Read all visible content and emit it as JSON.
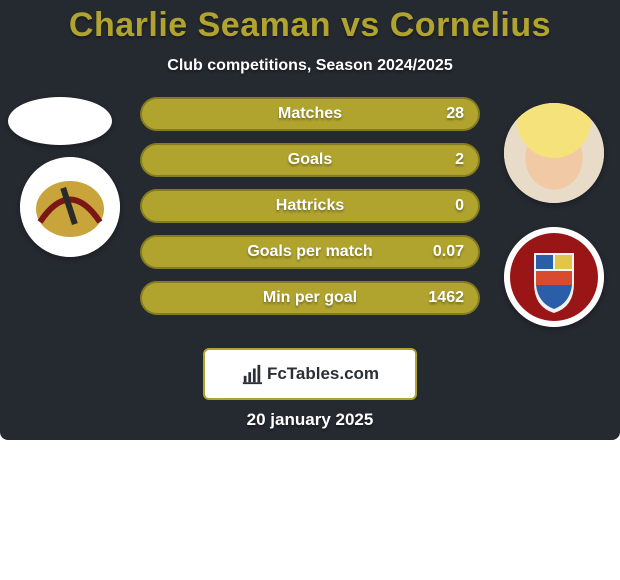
{
  "colors": {
    "card_bg": "#252930",
    "title_color": "#b0a42f",
    "subtitle_color": "#ffffff",
    "bar_bg": "#b0a42f",
    "bar_border": "#857c1f",
    "bar_text": "#ffffff",
    "footer_border": "#b0a42f",
    "footer_text": "#2b2f36",
    "footer_bg": "#ffffff",
    "date_color": "#ffffff"
  },
  "title": "Charlie Seaman vs Cornelius",
  "subtitle": "Club competitions, Season 2024/2025",
  "stats": [
    {
      "label": "Matches",
      "value": "28"
    },
    {
      "label": "Goals",
      "value": "2"
    },
    {
      "label": "Hattricks",
      "value": "0"
    },
    {
      "label": "Goals per match",
      "value": "0.07"
    },
    {
      "label": "Min per goal",
      "value": "1462"
    }
  ],
  "footer_brand": "FcTables.com",
  "date": "20 january 2025",
  "left": {
    "player_name": "charlie-seaman-avatar",
    "club_name": "doncaster-crest"
  },
  "right": {
    "player_name": "cornelius-avatar",
    "club_name": "scarborough-crest"
  }
}
